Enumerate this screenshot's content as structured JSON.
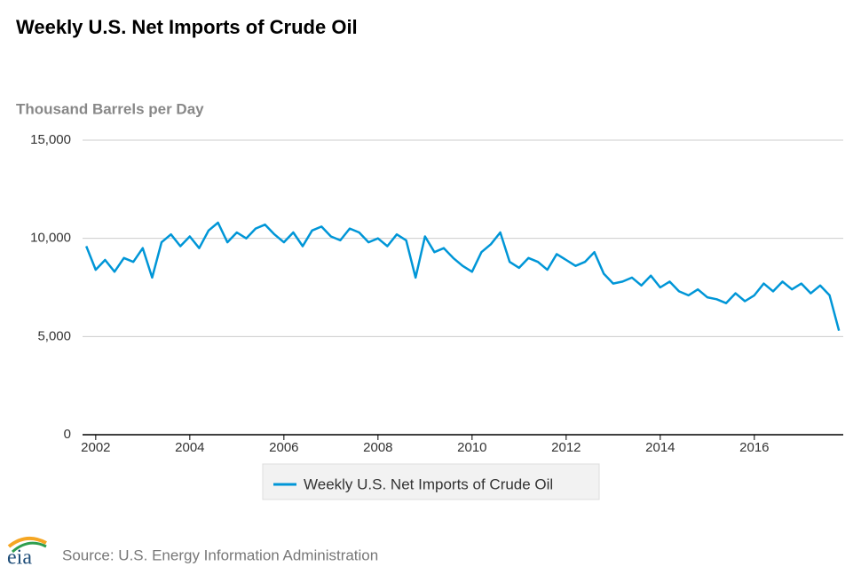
{
  "chart_data": {
    "type": "line",
    "title": "Weekly U.S. Net Imports of Crude Oil",
    "y_axis_label": "Thousand Barrels per Day",
    "source": "Source: U.S. Energy Information Administration",
    "logo": "eia",
    "x": [
      2001.8,
      2002.0,
      2002.2,
      2002.4,
      2002.6,
      2002.8,
      2003.0,
      2003.2,
      2003.4,
      2003.6,
      2003.8,
      2004.0,
      2004.2,
      2004.4,
      2004.6,
      2004.8,
      2005.0,
      2005.2,
      2005.4,
      2005.6,
      2005.8,
      2006.0,
      2006.2,
      2006.4,
      2006.6,
      2006.8,
      2007.0,
      2007.2,
      2007.4,
      2007.6,
      2007.8,
      2008.0,
      2008.2,
      2008.4,
      2008.6,
      2008.8,
      2009.0,
      2009.2,
      2009.4,
      2009.6,
      2009.8,
      2010.0,
      2010.2,
      2010.4,
      2010.6,
      2010.8,
      2011.0,
      2011.2,
      2011.4,
      2011.6,
      2011.8,
      2012.0,
      2012.2,
      2012.4,
      2012.6,
      2012.8,
      2013.0,
      2013.2,
      2013.4,
      2013.6,
      2013.8,
      2014.0,
      2014.2,
      2014.4,
      2014.6,
      2014.8,
      2015.0,
      2015.2,
      2015.4,
      2015.6,
      2015.8,
      2016.0,
      2016.2,
      2016.4,
      2016.6,
      2016.8,
      2017.0,
      2017.2,
      2017.4,
      2017.6,
      2017.8
    ],
    "series": [
      {
        "name": "Weekly U.S. Net Imports of Crude Oil",
        "color": "#0096d7",
        "values": [
          9600,
          8400,
          8900,
          8300,
          9000,
          8800,
          9500,
          8000,
          9800,
          10200,
          9600,
          10100,
          9500,
          10400,
          10800,
          9800,
          10300,
          10000,
          10500,
          10700,
          10200,
          9800,
          10300,
          9600,
          10400,
          10600,
          10100,
          9900,
          10500,
          10300,
          9800,
          10000,
          9600,
          10200,
          9900,
          8000,
          10100,
          9300,
          9500,
          9000,
          8600,
          8300,
          9300,
          9700,
          10300,
          8800,
          8500,
          9000,
          8800,
          8400,
          9200,
          8900,
          8600,
          8800,
          9300,
          8200,
          7700,
          7800,
          8000,
          7600,
          8100,
          7500,
          7800,
          7300,
          7100,
          7400,
          7000,
          6900,
          6700,
          7200,
          6800,
          7100,
          7700,
          7300,
          7800,
          7400,
          7700,
          7200,
          7600,
          7100,
          5300
        ]
      }
    ],
    "xlim": [
      2001.72,
      2017.89
    ],
    "xticks": [
      2002,
      2004,
      2006,
      2008,
      2010,
      2012,
      2014,
      2016
    ],
    "ylim": [
      0,
      15000
    ],
    "yticks": [
      0,
      {
        "value": 5000,
        "label": "5,000"
      },
      {
        "value": 10000,
        "label": "10,000"
      },
      {
        "value": 15000,
        "label": "15,000"
      }
    ],
    "grid": true
  }
}
